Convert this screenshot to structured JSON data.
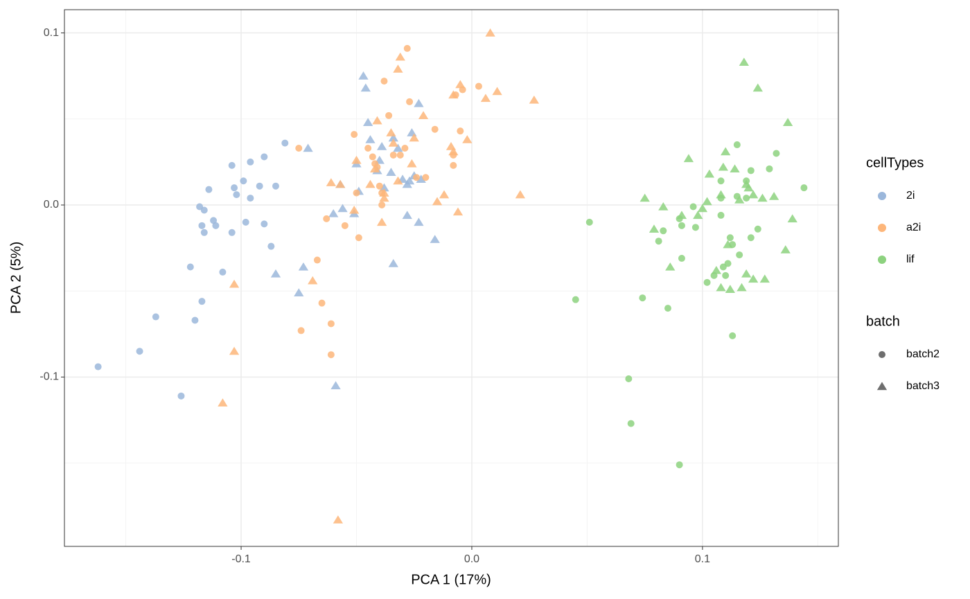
{
  "chart_data": {
    "type": "scatter",
    "xlabel": "PCA 1 (17%)",
    "ylabel": "PCA 2 (5%)",
    "xlim": [
      -0.1766,
      0.1589
    ],
    "ylim": [
      -0.1984,
      0.1135
    ],
    "xticks": [
      -0.1,
      {
        "value": 0,
        "label": "0.0"
      },
      0.1
    ],
    "yticks": [
      -0.1,
      {
        "value": 0,
        "label": "0.0"
      },
      0.1
    ],
    "x_minor_ticks": [
      -0.15,
      -0.05,
      0.05,
      0.15
    ],
    "y_minor_ticks": [
      -0.15,
      -0.05,
      0.05
    ],
    "grid": true,
    "legend": "right",
    "color_legend_title": "cellTypes",
    "shape_legend": {
      "title": "batch",
      "entries": [
        {
          "name": "batch2",
          "shape": "circle"
        },
        {
          "name": "batch3",
          "shape": "triangle"
        }
      ]
    },
    "series": [
      {
        "name": "2i",
        "color": "#9bb7db",
        "points": {
          "circle": {
            "x": [
              -0.162,
              -0.144,
              -0.137,
              -0.126,
              -0.122,
              -0.117,
              -0.12,
              -0.118,
              -0.116,
              -0.117,
              -0.116,
              -0.111,
              -0.114,
              -0.112,
              -0.108,
              -0.104,
              -0.103,
              -0.102,
              -0.104,
              -0.099,
              -0.098,
              -0.096,
              -0.096,
              -0.092,
              -0.09,
              -0.09,
              -0.087,
              -0.085,
              -0.081
            ],
            "y": [
              -0.094,
              -0.085,
              -0.065,
              -0.111,
              -0.036,
              -0.056,
              -0.067,
              -0.001,
              -0.003,
              -0.012,
              -0.016,
              -0.012,
              0.009,
              -0.009,
              -0.039,
              0.023,
              0.01,
              0.006,
              -0.016,
              0.014,
              -0.01,
              0.025,
              0.004,
              0.011,
              0.028,
              -0.011,
              -0.024,
              0.011,
              0.036
            ]
          },
          "triangle": {
            "x": [
              -0.071,
              -0.047,
              -0.046,
              -0.045,
              -0.05,
              -0.044,
              -0.039,
              -0.04,
              -0.035,
              -0.034,
              -0.032,
              -0.03,
              -0.026,
              -0.025,
              -0.023,
              -0.028,
              -0.027,
              -0.022,
              -0.023,
              -0.016,
              -0.041,
              -0.049,
              -0.051,
              -0.057,
              -0.06,
              -0.056,
              -0.073,
              -0.075,
              -0.085,
              -0.059,
              -0.034,
              -0.028,
              -0.038
            ],
            "y": [
              0.033,
              0.075,
              0.068,
              0.048,
              0.024,
              0.038,
              0.034,
              0.026,
              0.019,
              0.039,
              0.033,
              0.015,
              0.042,
              0.017,
              0.059,
              0.012,
              0.014,
              0.015,
              -0.01,
              -0.02,
              0.02,
              0.008,
              -0.005,
              0.012,
              -0.005,
              -0.002,
              -0.036,
              -0.051,
              -0.04,
              -0.105,
              -0.034,
              -0.006,
              0.01
            ]
          }
        }
      },
      {
        "name": "a2i",
        "color": "#fdb67a",
        "points": {
          "circle": {
            "x": [
              -0.028,
              -0.038,
              -0.036,
              -0.027,
              -0.016,
              -0.029,
              -0.031,
              -0.034,
              -0.043,
              -0.042,
              -0.041,
              -0.04,
              -0.039,
              -0.039,
              -0.051,
              -0.045,
              -0.024,
              -0.02,
              -0.008,
              -0.005,
              -0.004,
              0.003,
              -0.007,
              -0.008,
              -0.05,
              -0.049,
              -0.055,
              -0.063,
              -0.075,
              -0.067,
              -0.065,
              -0.061,
              -0.061,
              -0.074
            ],
            "y": [
              0.091,
              0.072,
              0.052,
              0.06,
              0.044,
              0.033,
              0.029,
              0.029,
              0.028,
              0.024,
              0.022,
              0.011,
              0.007,
              0.0,
              0.041,
              0.033,
              0.016,
              0.016,
              0.023,
              0.043,
              0.067,
              0.069,
              0.064,
              0.029,
              0.007,
              -0.019,
              -0.012,
              -0.008,
              0.033,
              -0.032,
              -0.057,
              -0.069,
              -0.087,
              -0.073
            ]
          },
          "triangle": {
            "x": [
              0.008,
              -0.031,
              -0.032,
              -0.021,
              0.011,
              0.006,
              0.027,
              -0.005,
              -0.008,
              -0.009,
              -0.008,
              -0.002,
              -0.038,
              -0.039,
              -0.044,
              -0.05,
              -0.041,
              -0.035,
              -0.034,
              -0.026,
              -0.032,
              -0.038,
              -0.015,
              -0.012,
              -0.006,
              0.021,
              -0.057,
              -0.061,
              -0.051,
              -0.069,
              -0.103,
              -0.103,
              -0.108,
              -0.058,
              -0.042,
              -0.025
            ],
            "y": [
              0.1,
              0.086,
              0.079,
              0.052,
              0.066,
              0.062,
              0.061,
              0.07,
              0.064,
              0.034,
              0.031,
              0.038,
              0.004,
              -0.01,
              0.012,
              0.026,
              0.049,
              0.042,
              0.036,
              0.024,
              0.014,
              0.007,
              0.002,
              0.006,
              -0.004,
              0.006,
              0.012,
              0.013,
              -0.003,
              -0.044,
              -0.046,
              -0.085,
              -0.115,
              -0.183,
              0.021,
              0.039
            ]
          }
        }
      },
      {
        "name": "lif",
        "color": "#8dd27f",
        "points": {
          "circle": {
            "x": [
              0.144,
              0.132,
              0.115,
              0.129,
              0.119,
              0.115,
              0.119,
              0.108,
              0.108,
              0.096,
              0.097,
              0.091,
              0.09,
              0.083,
              0.081,
              0.091,
              0.108,
              0.112,
              0.113,
              0.111,
              0.121,
              0.124,
              0.116,
              0.109,
              0.105,
              0.11,
              0.102,
              0.113,
              0.085,
              0.074,
              0.051,
              0.045,
              0.068,
              0.069,
              0.09,
              0.121
            ],
            "y": [
              0.01,
              0.03,
              0.035,
              0.021,
              0.004,
              0.005,
              0.014,
              0.014,
              0.004,
              -0.001,
              -0.013,
              -0.012,
              -0.008,
              -0.015,
              -0.021,
              -0.031,
              -0.006,
              -0.019,
              -0.023,
              -0.034,
              -0.019,
              -0.014,
              -0.029,
              -0.036,
              -0.041,
              -0.041,
              -0.045,
              -0.076,
              -0.06,
              -0.054,
              -0.01,
              -0.055,
              -0.101,
              -0.127,
              -0.151,
              0.02
            ]
          },
          "triangle": {
            "x": [
              0.118,
              0.124,
              0.137,
              0.094,
              0.103,
              0.11,
              0.109,
              0.114,
              0.119,
              0.12,
              0.122,
              0.126,
              0.131,
              0.139,
              0.136,
              0.127,
              0.122,
              0.119,
              0.112,
              0.116,
              0.108,
              0.102,
              0.1,
              0.098,
              0.091,
              0.083,
              0.075,
              0.079,
              0.086,
              0.106,
              0.111,
              0.117,
              0.108
            ],
            "y": [
              0.083,
              0.068,
              0.048,
              0.027,
              0.018,
              0.031,
              0.022,
              0.021,
              0.012,
              0.01,
              0.006,
              0.004,
              0.005,
              -0.008,
              -0.026,
              -0.043,
              -0.043,
              -0.04,
              -0.049,
              0.003,
              0.006,
              0.002,
              -0.002,
              -0.006,
              -0.006,
              -0.001,
              0.004,
              -0.014,
              -0.036,
              -0.038,
              -0.023,
              -0.048,
              -0.048
            ]
          }
        }
      }
    ]
  }
}
